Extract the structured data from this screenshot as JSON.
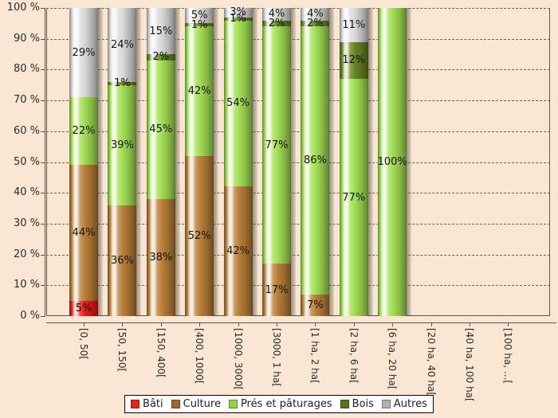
{
  "colors": {
    "background": "#fae7d3",
    "grid": "#6b6257",
    "axis": "#5c554b",
    "segment_label_text": "#141414",
    "axis_label_text": "#2b2b2b",
    "legend_background": "#ffffff",
    "legend_border": "#000000"
  },
  "chart_data": {
    "type": "bar",
    "stacked": true,
    "percent_stacked": true,
    "grid": "horizontal dashed",
    "legend_position": "bottom",
    "ylim": [
      0,
      100
    ],
    "yticks": [
      0,
      10,
      20,
      30,
      40,
      50,
      60,
      70,
      80,
      90,
      100
    ],
    "ytick_labels": [
      "0 %",
      "10 %",
      "20 %",
      "30 %",
      "40 %",
      "50 %",
      "60 %",
      "70 %",
      "80 %",
      "90 %",
      "100 %"
    ],
    "value_suffix": "%",
    "categories": [
      "[0, 50[",
      "[50, 150[",
      "[150, 400[",
      "[400, 1000[",
      "[1000, 3000[",
      "[3000, 1 ha[",
      "[1 ha, 2 ha[",
      "[2 ha, 6 ha[",
      "[6 ha, 20 ha[",
      "[20 ha, 40 ha[",
      "[40 ha, 100 ha[",
      "[100 ha, ...["
    ],
    "series": [
      {
        "name": "Bâti",
        "color": "#f61717",
        "legend_color": "#e62419",
        "values": [
          5,
          0,
          0,
          0,
          0,
          0,
          0,
          0,
          0,
          0,
          0,
          0
        ]
      },
      {
        "name": "Culture",
        "color": "#bd8138",
        "legend_color": "#a2682a",
        "values": [
          44,
          36,
          38,
          52,
          42,
          17,
          7,
          0,
          0,
          0,
          0,
          0
        ]
      },
      {
        "name": "Prés et pâturages",
        "color": "#a6e356",
        "legend_color": "#92d244",
        "values": [
          22,
          39,
          45,
          42,
          54,
          77,
          86,
          77,
          100,
          0,
          0,
          0
        ]
      },
      {
        "name": "Bois",
        "color": "#6a8522",
        "legend_color": "#59731c",
        "values": [
          0,
          1,
          2,
          1,
          1,
          2,
          2,
          12,
          0,
          0,
          0,
          0
        ]
      },
      {
        "name": "Autres",
        "color": "#dedede",
        "legend_color": "#b3b3b3",
        "values": [
          29,
          24,
          15,
          5,
          3,
          4,
          4,
          11,
          0,
          0,
          0,
          0
        ]
      }
    ]
  }
}
